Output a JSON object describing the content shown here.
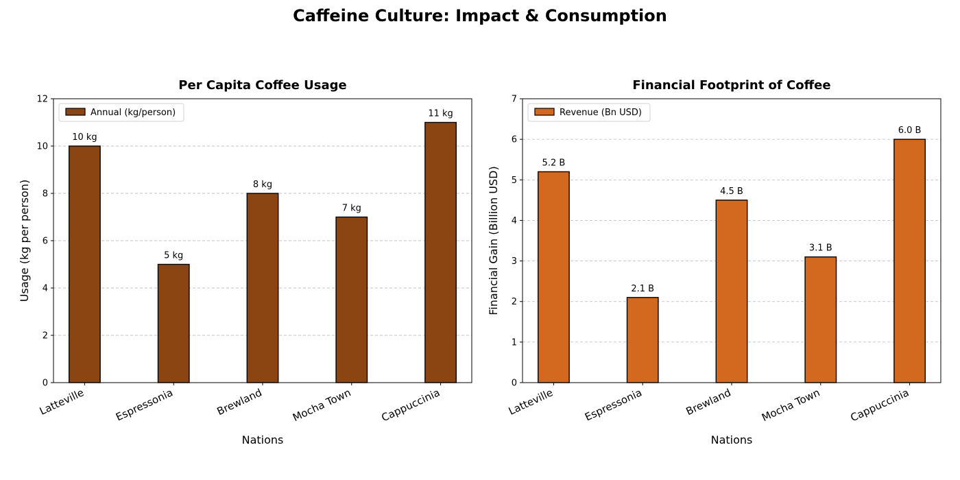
{
  "figure": {
    "title": "Caffeine Culture: Impact & Consumption"
  },
  "chart_data": [
    {
      "type": "bar",
      "title": "Per Capita Coffee Usage",
      "xlabel": "Nations",
      "ylabel": "Usage (kg per person)",
      "categories": [
        "Latteville",
        "Espressonia",
        "Brewland",
        "Mocha Town",
        "Cappuccinia"
      ],
      "series": [
        {
          "name": "Annual (kg/person)",
          "values": [
            10,
            5,
            8,
            7,
            11
          ],
          "color": "#8B4513",
          "data_labels": [
            "10 kg",
            "5 kg",
            "8 kg",
            "7 kg",
            "11 kg"
          ]
        }
      ],
      "ylim": [
        0,
        12
      ],
      "yticks": [
        0,
        2,
        4,
        6,
        8,
        10,
        12
      ],
      "grid": "y-dashed",
      "legend_position": "top-left"
    },
    {
      "type": "bar",
      "title": "Financial Footprint of Coffee",
      "xlabel": "Nations",
      "ylabel": "Financial Gain (Billion USD)",
      "categories": [
        "Latteville",
        "Espressonia",
        "Brewland",
        "Mocha Town",
        "Cappuccinia"
      ],
      "series": [
        {
          "name": "Revenue (Bn USD)",
          "values": [
            5.2,
            2.1,
            4.5,
            3.1,
            6.0
          ],
          "color": "#D2691E",
          "data_labels": [
            "5.2 B",
            "2.1 B",
            "4.5 B",
            "3.1 B",
            "6.0 B"
          ]
        }
      ],
      "ylim": [
        0,
        7
      ],
      "yticks": [
        0,
        1,
        2,
        3,
        4,
        5,
        6,
        7
      ],
      "grid": "y-dashed",
      "legend_position": "top-left"
    }
  ]
}
